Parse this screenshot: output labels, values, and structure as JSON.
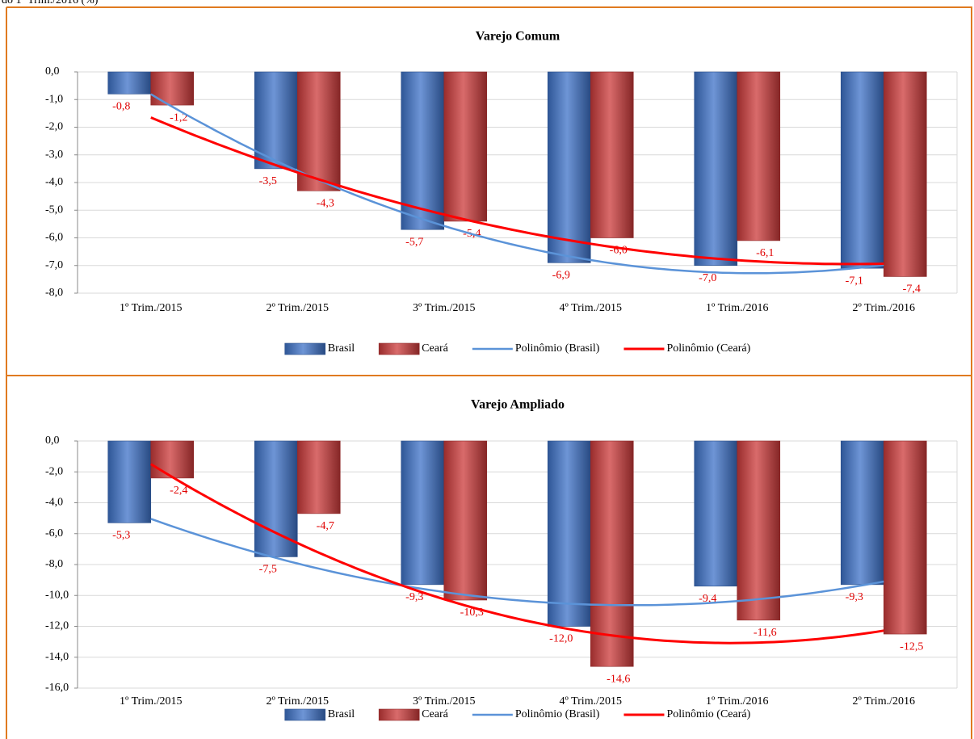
{
  "header": "do 1º Trim./2016 (%)",
  "chart_data": [
    {
      "type": "bar",
      "title": "Varejo Comum",
      "categories": [
        "1º Trim./2015",
        "2º Trim./2015",
        "3º Trim./2015",
        "4º Trim./2015",
        "1º Trim./2016",
        "2º Trim./2016"
      ],
      "series": [
        {
          "name": "Brasil",
          "color": "#3d72c8",
          "values": [
            -0.8,
            -3.5,
            -5.7,
            -6.9,
            -7.0,
            -7.1
          ],
          "value_labels": [
            "-0,8",
            "-3,5",
            "-5,7",
            "-6,9",
            "-7,0",
            "-7,1"
          ],
          "trendline": {
            "name": "Polinômio (Brasil)",
            "color": "#5b93d8",
            "degree": 2
          }
        },
        {
          "name": "Ceará",
          "color": "#cc3a3a",
          "values": [
            -1.2,
            -4.3,
            -5.4,
            -6.0,
            -6.1,
            -7.4
          ],
          "value_labels": [
            "-1,2",
            "-4,3",
            "-5,4",
            "-6,0",
            "-6,1",
            "-7,4"
          ],
          "trendline": {
            "name": "Polinômio (Ceará)",
            "color": "#ff0000",
            "degree": 2
          }
        }
      ],
      "ylim": [
        -8,
        0
      ],
      "yticks": [
        {
          "value": 0,
          "label": "0,0"
        },
        {
          "value": -1,
          "label": "-1,0"
        },
        {
          "value": -2,
          "label": "-2,0"
        },
        {
          "value": -3,
          "label": "-3,0"
        },
        {
          "value": -4,
          "label": "-4,0"
        },
        {
          "value": -5,
          "label": "-5,0"
        },
        {
          "value": -6,
          "label": "-6,0"
        },
        {
          "value": -7,
          "label": "-7,0"
        },
        {
          "value": -8,
          "label": "-8,0"
        }
      ],
      "grid": true,
      "legend": "bottom"
    },
    {
      "type": "bar",
      "title": "Varejo Ampliado",
      "categories": [
        "1º Trim./2015",
        "2º Trim./2015",
        "3º Trim./2015",
        "4º Trim./2015",
        "1º Trim./2016",
        "2º Trim./2016"
      ],
      "series": [
        {
          "name": "Brasil",
          "color": "#3d72c8",
          "values": [
            -5.3,
            -7.5,
            -9.3,
            -12.0,
            -9.4,
            -9.3
          ],
          "value_labels": [
            "-5,3",
            "-7,5",
            "-9,3",
            "-12,0",
            "-9,4",
            "-9,3"
          ],
          "trendline": {
            "name": "Polinômio (Brasil)",
            "color": "#5b93d8",
            "degree": 2
          }
        },
        {
          "name": "Ceará",
          "color": "#cc3a3a",
          "values": [
            -2.4,
            -4.7,
            -10.3,
            -14.6,
            -11.6,
            -12.5
          ],
          "value_labels": [
            "-2,4",
            "-4,7",
            "-10,3",
            "-14,6",
            "-11,6",
            "-12,5"
          ],
          "trendline": {
            "name": "Polinômio (Ceará)",
            "color": "#ff0000",
            "degree": 2
          }
        }
      ],
      "ylim": [
        -16,
        0
      ],
      "yticks": [
        {
          "value": 0,
          "label": "0,0"
        },
        {
          "value": -2,
          "label": "-2,0"
        },
        {
          "value": -4,
          "label": "-4,0"
        },
        {
          "value": -6,
          "label": "-6,0"
        },
        {
          "value": -8,
          "label": "-8,0"
        },
        {
          "value": -10,
          "label": "-10,0"
        },
        {
          "value": -12,
          "label": "-12,0"
        },
        {
          "value": -14,
          "label": "-14,0"
        },
        {
          "value": -16,
          "label": "-16,0"
        }
      ],
      "grid": true,
      "legend": "bottom"
    }
  ]
}
